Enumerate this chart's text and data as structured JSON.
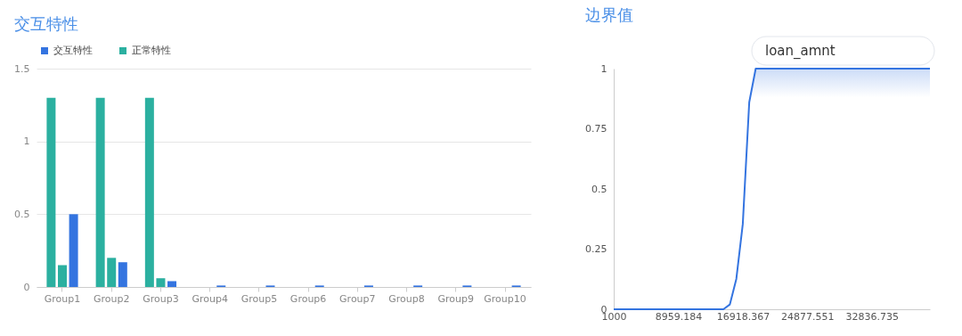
{
  "chart_data": [
    {
      "type": "bar",
      "title": "交互特性",
      "categories": [
        "Group1",
        "Group2",
        "Group3",
        "Group4",
        "Group5",
        "Group6",
        "Group7",
        "Group8",
        "Group9",
        "Group10"
      ],
      "series": [
        {
          "name": "正常特性",
          "color": "#2bb0a0",
          "values": [
            1.3,
            1.3,
            1.3,
            null,
            null,
            null,
            null,
            null,
            null,
            null
          ]
        },
        {
          "color": "#2bb0a0",
          "values": [
            0.15,
            0.2,
            0.06,
            null,
            null,
            null,
            null,
            null,
            null,
            null
          ]
        },
        {
          "name": "交互特性",
          "color": "#3474e0",
          "values": [
            0.5,
            0.17,
            0.04,
            0.01,
            0.01,
            0.01,
            0.01,
            0.01,
            0.01,
            0.01
          ]
        }
      ],
      "ylim": [
        0,
        1.5
      ],
      "yticks": [
        0,
        0.5,
        1,
        1.5
      ],
      "grid": "y",
      "legend": "top left"
    },
    {
      "type": "area",
      "title": "边界值",
      "annotations": [
        "loan_amnt"
      ],
      "x": [
        1000,
        14530.612,
        15326.531,
        16122.449,
        16918.367,
        17714.286,
        18510.204,
        40000
      ],
      "series": [
        {
          "color": "#3474e0",
          "values": [
            0,
            0,
            0.02,
            0.126,
            0.354,
            0.86,
            1,
            1
          ]
        }
      ],
      "xlim": [
        1000,
        40000
      ],
      "xticks": [
        1000,
        8959.184,
        16918.367,
        24877.551,
        32836.735
      ],
      "ylim": [
        0,
        1
      ],
      "yticks": [
        0,
        0.25,
        0.5,
        0.75,
        1
      ],
      "grid": false
    }
  ]
}
